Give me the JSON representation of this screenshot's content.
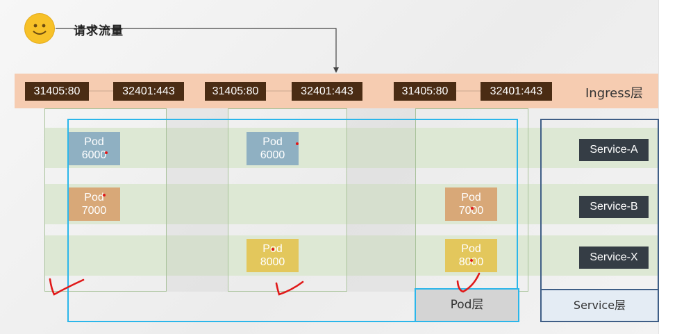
{
  "request": {
    "label": "请求流量",
    "avatar": "smiley-face-icon"
  },
  "ingress": {
    "label": "Ingress层",
    "ports": [
      "31405:80",
      "32401:443",
      "31405:80",
      "32401:443",
      "31405:80",
      "32401:443"
    ]
  },
  "pods": [
    {
      "name": "Pod",
      "port": "6000",
      "color": "#8fb0c2"
    },
    {
      "name": "Pod",
      "port": "6000",
      "color": "#8fb0c2"
    },
    {
      "name": "Pod",
      "port": "7000",
      "color": "#d8a878"
    },
    {
      "name": "Pod",
      "port": "7000",
      "color": "#d8a878"
    },
    {
      "name": "Pod",
      "port": "8000",
      "color": "#e3c75c"
    },
    {
      "name": "Pod",
      "port": "8000",
      "color": "#e3c75c"
    }
  ],
  "services": [
    "Service-A",
    "Service-B",
    "Service-X"
  ],
  "layers": {
    "pod": "Pod层",
    "service": "Service层"
  },
  "colors": {
    "ingress_band": "#f6ccb1",
    "port_box": "#4a2c14",
    "row_band": "#dde8d4",
    "pod_outline": "#2bb6ea",
    "service_outline": "#3f5e86",
    "service_box": "#353d45",
    "annotation": "#e01818"
  }
}
